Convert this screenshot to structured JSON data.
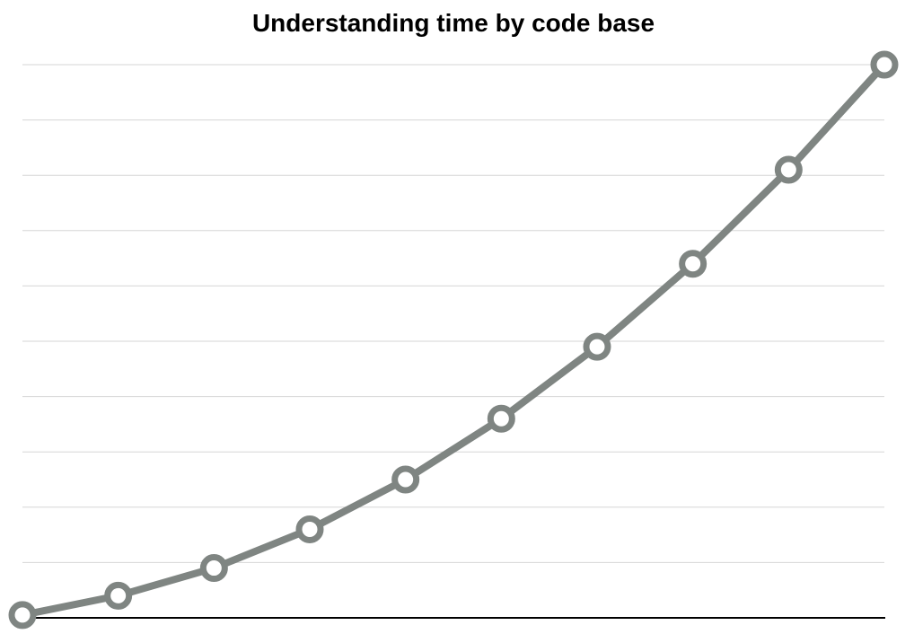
{
  "chart_data": {
    "type": "line",
    "title": "Understanding time by code base",
    "xlabel": "",
    "ylabel": "",
    "x": [
      1,
      2,
      3,
      4,
      5,
      6,
      7,
      8,
      9,
      10
    ],
    "ylim": [
      0,
      10
    ],
    "grid": true,
    "series": [
      {
        "values": [
          0.05,
          0.4,
          0.9,
          1.6,
          2.5,
          3.6,
          4.9,
          6.4,
          8.1,
          10.0
        ],
        "color": "#7f8582"
      }
    ],
    "colors": {
      "line": "#7f8582",
      "marker_fill": "#ffffff",
      "grid": "#d6d6d6",
      "axis": "#000000"
    }
  }
}
